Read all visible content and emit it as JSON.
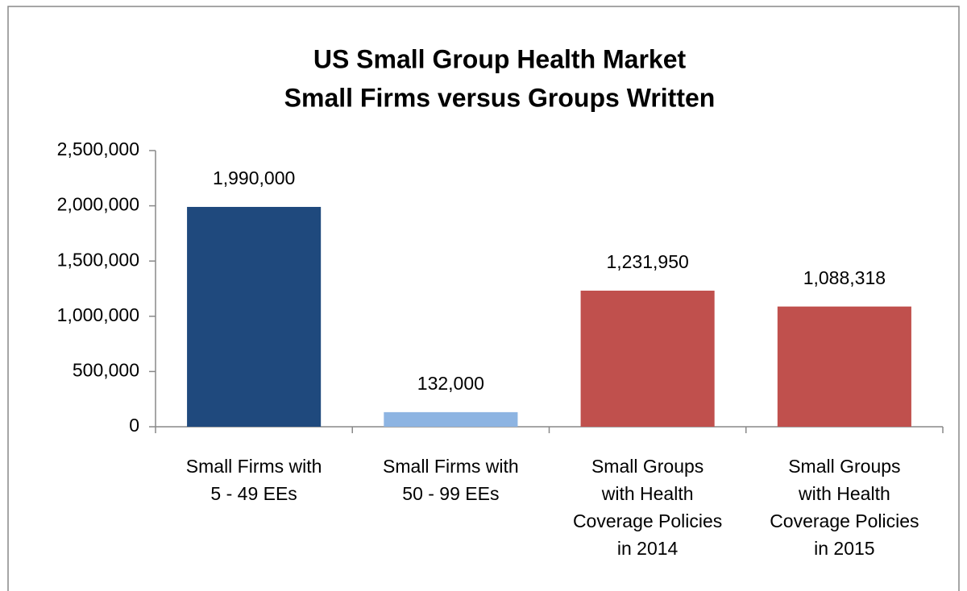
{
  "chart_data": {
    "type": "bar",
    "title": "US Small Group Health Market",
    "subtitle": "Small Firms versus Groups Written",
    "categories": [
      "Small Firms with\n5 - 49 EEs",
      "Small Firms with\n50 - 99 EEs",
      "Small Groups\nwith Health\nCoverage Policies\nin 2014",
      "Small Groups\nwith Health\nCoverage Policies\nin 2015"
    ],
    "values": [
      1990000,
      132000,
      1231950,
      1088318
    ],
    "value_labels": [
      "1,990,000",
      "132,000",
      "1,231,950",
      "1,088,318"
    ],
    "colors": [
      "#1f497d",
      "#8db4e2",
      "#c0504d",
      "#c0504d"
    ],
    "ylim": [
      0,
      2500000
    ],
    "yticks": [
      0,
      {
        "value": 500000,
        "label": "500,000"
      },
      {
        "value": 1000000,
        "label": "1,000,000"
      },
      {
        "value": 1500000,
        "label": "1,500,000"
      },
      {
        "value": 2000000,
        "label": "2,000,000"
      },
      {
        "value": 2500000,
        "label": "2,500,000"
      }
    ],
    "grid": false
  }
}
